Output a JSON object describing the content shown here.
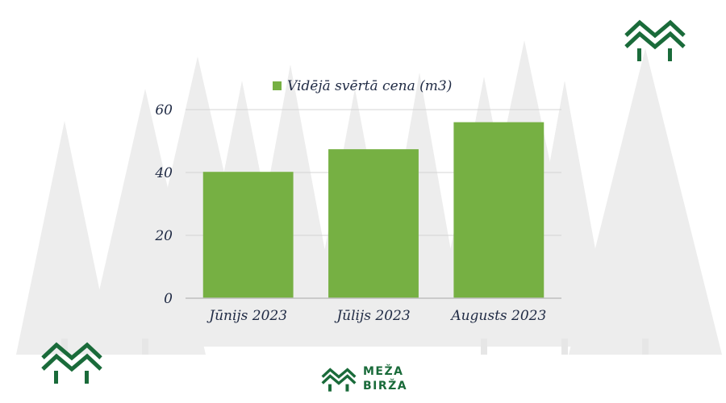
{
  "chart_data": {
    "type": "bar",
    "categories": [
      "Jūnijs 2023",
      "Jūlijs 2023",
      "Augusts 2023"
    ],
    "series": [
      {
        "name": "Vidējā svērtā cena (m3)",
        "values": [
          40.2,
          47.4,
          56.0
        ]
      }
    ],
    "yticks": [
      "0",
      "20",
      "40",
      "60"
    ],
    "ylim": [
      0,
      60
    ],
    "grid": true,
    "legend_position": "top-center"
  },
  "colors": {
    "bar": "#76b043",
    "grid": "#d4d4d4",
    "axis": "#bfbfbf",
    "text": "#1f2a44",
    "brand_green": "#1a6b3a",
    "trees": "#ececec"
  },
  "brand": {
    "line1": "MEŽA",
    "line2": "BIRŽA"
  },
  "icons": {
    "logo_top_right": "meza-birza-logo-icon",
    "logo_bottom_left": "meza-birza-logo-icon",
    "logo_footer": "meza-birza-logo-icon"
  }
}
